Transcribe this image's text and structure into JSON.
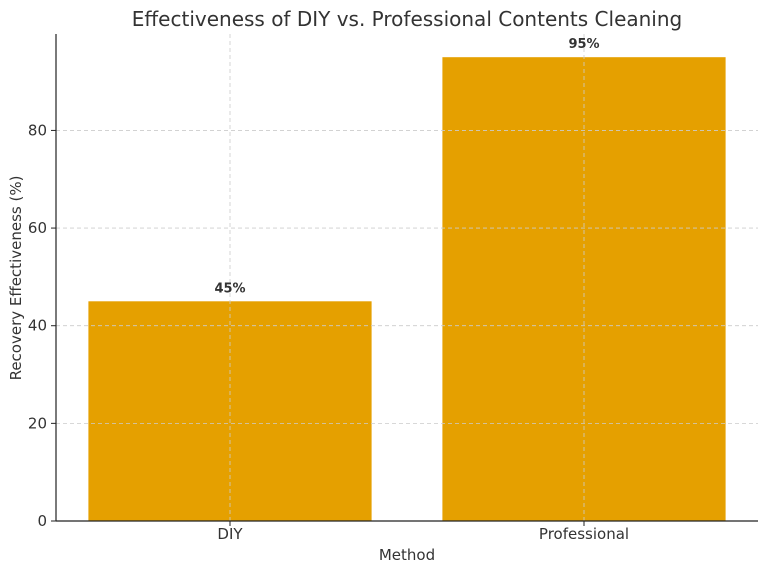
{
  "chart_data": {
    "type": "bar",
    "title": "Effectiveness of DIY vs. Professional Contents Cleaning",
    "xlabel": "Method",
    "ylabel": "Recovery Effectiveness (%)",
    "categories": [
      "DIY",
      "Professional"
    ],
    "values": [
      45,
      95
    ],
    "data_labels": [
      "45%",
      "95%"
    ],
    "ylim": [
      0,
      99.75
    ],
    "yticks": [
      0,
      20,
      40,
      60,
      80
    ],
    "grid": true,
    "bar_color": "#E5A000"
  }
}
